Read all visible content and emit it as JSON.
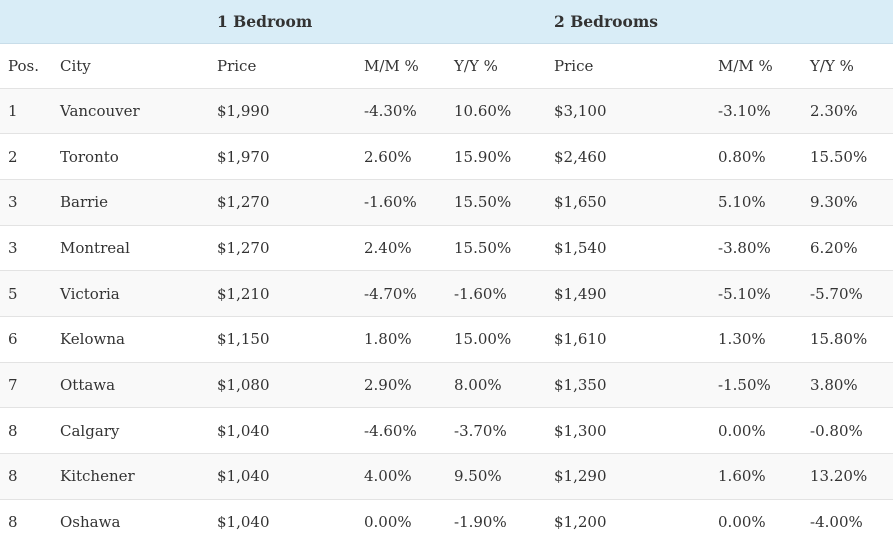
{
  "groups": {
    "bed1": "1 Bedroom",
    "bed2": "2 Bedrooms"
  },
  "columns": {
    "pos": "Pos.",
    "city": "City",
    "price1": "Price",
    "mm1": "M/M %",
    "yy1": "Y/Y %",
    "price2": "Price",
    "mm2": "M/M %",
    "yy2": "Y/Y %"
  },
  "rows": [
    {
      "pos": "1",
      "city": "Vancouver",
      "price1": "$1,990",
      "mm1": "-4.30%",
      "yy1": "10.60%",
      "price2": "$3,100",
      "mm2": "-3.10%",
      "yy2": "2.30%"
    },
    {
      "pos": "2",
      "city": "Toronto",
      "price1": "$1,970",
      "mm1": "2.60%",
      "yy1": "15.90%",
      "price2": "$2,460",
      "mm2": "0.80%",
      "yy2": "15.50%"
    },
    {
      "pos": "3",
      "city": "Barrie",
      "price1": "$1,270",
      "mm1": "-1.60%",
      "yy1": "15.50%",
      "price2": "$1,650",
      "mm2": "5.10%",
      "yy2": "9.30%"
    },
    {
      "pos": "3",
      "city": "Montreal",
      "price1": "$1,270",
      "mm1": "2.40%",
      "yy1": "15.50%",
      "price2": "$1,540",
      "mm2": "-3.80%",
      "yy2": "6.20%"
    },
    {
      "pos": "5",
      "city": "Victoria",
      "price1": "$1,210",
      "mm1": "-4.70%",
      "yy1": "-1.60%",
      "price2": "$1,490",
      "mm2": "-5.10%",
      "yy2": "-5.70%"
    },
    {
      "pos": "6",
      "city": "Kelowna",
      "price1": "$1,150",
      "mm1": "1.80%",
      "yy1": "15.00%",
      "price2": "$1,610",
      "mm2": "1.30%",
      "yy2": "15.80%"
    },
    {
      "pos": "7",
      "city": "Ottawa",
      "price1": "$1,080",
      "mm1": "2.90%",
      "yy1": "8.00%",
      "price2": "$1,350",
      "mm2": "-1.50%",
      "yy2": "3.80%"
    },
    {
      "pos": "8",
      "city": "Calgary",
      "price1": "$1,040",
      "mm1": "-4.60%",
      "yy1": "-3.70%",
      "price2": "$1,300",
      "mm2": "0.00%",
      "yy2": "-0.80%"
    },
    {
      "pos": "8",
      "city": "Kitchener",
      "price1": "$1,040",
      "mm1": "4.00%",
      "yy1": "9.50%",
      "price2": "$1,290",
      "mm2": "1.60%",
      "yy2": "13.20%"
    },
    {
      "pos": "8",
      "city": "Oshawa",
      "price1": "$1,040",
      "mm1": "0.00%",
      "yy1": "-1.90%",
      "price2": "$1,200",
      "mm2": "0.00%",
      "yy2": "-4.00%"
    }
  ]
}
